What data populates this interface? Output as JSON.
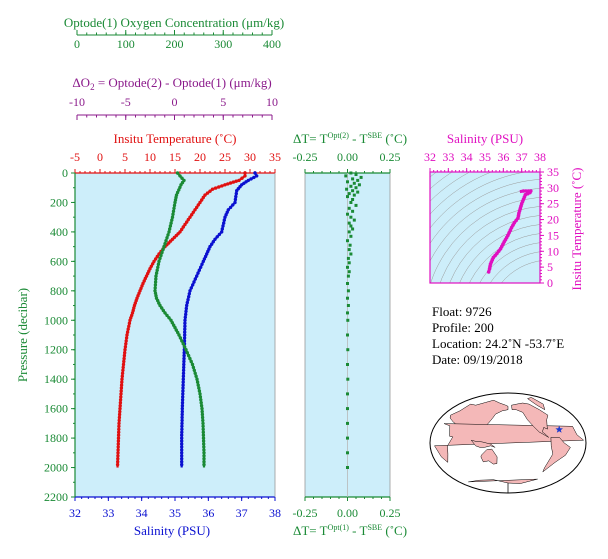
{
  "colors": {
    "green": "#1a8a35",
    "purple": "#8b1a8b",
    "red": "#e01010",
    "blue": "#0a10d0",
    "magenta": "#e010c0",
    "panel_bg": "#cdeefa",
    "map_land": "#f4b8b8",
    "map_ocean": "#ffffff"
  },
  "info": {
    "float": "Float:  9726",
    "profile": "Profile:  200",
    "location": "Location:  24.2˚N  -53.7˚E",
    "date": "Date:  09/19/2018"
  },
  "map": {
    "marker_lat": 24.2,
    "marker_lon": -53.7
  },
  "chart_data": [
    {
      "id": "oxygen-axis",
      "type": "line",
      "title": "Optode(1) Oxygen Concentration (μm/kg)",
      "xlim": [
        0,
        400
      ],
      "ticks": [
        "0",
        "100",
        "200",
        "300",
        "400"
      ]
    },
    {
      "id": "delta-o2-axis",
      "type": "line",
      "title_parts": [
        "ΔO",
        "2",
        " = Optode(2) - Optode(1)    (μm/kg)"
      ],
      "xlim": [
        -10,
        10
      ],
      "ticks": [
        "-10",
        "-5",
        "0",
        "5",
        "10"
      ]
    },
    {
      "id": "main-profile",
      "type": "line",
      "top_axis_label": "Insitu Temperature (˚C)",
      "top_ticks": [
        "-5",
        "0",
        "5",
        "10",
        "15",
        "20",
        "25",
        "30",
        "35"
      ],
      "top_xlim": [
        -5,
        35
      ],
      "bottom_axis_label": "Salinity (PSU)",
      "bottom_ticks": [
        "32",
        "33",
        "34",
        "35",
        "36",
        "37",
        "38"
      ],
      "bottom_xlim": [
        32,
        38
      ],
      "ylabel": "Pressure (decibar)",
      "y_ticks": [
        "0",
        "200",
        "400",
        "600",
        "800",
        "1000",
        "1200",
        "1400",
        "1600",
        "1800",
        "2000",
        "2200"
      ],
      "ylim": [
        0,
        2200
      ],
      "grid": false,
      "series": [
        {
          "key": "temperature",
          "axis": "top",
          "color": "red",
          "points": [
            [
              0,
              29.0
            ],
            [
              20,
              29.0
            ],
            [
              50,
              27.8
            ],
            [
              80,
              25.0
            ],
            [
              110,
              22.5
            ],
            [
              150,
              21.0
            ],
            [
              200,
              20.0
            ],
            [
              250,
              19.0
            ],
            [
              300,
              18.0
            ],
            [
              350,
              17.0
            ],
            [
              400,
              16.0
            ],
            [
              450,
              14.5
            ],
            [
              500,
              13.0
            ],
            [
              550,
              11.8
            ],
            [
              600,
              10.8
            ],
            [
              650,
              10.0
            ],
            [
              700,
              9.3
            ],
            [
              750,
              8.6
            ],
            [
              800,
              8.0
            ],
            [
              850,
              7.4
            ],
            [
              900,
              6.9
            ],
            [
              950,
              6.5
            ],
            [
              1000,
              6.0
            ],
            [
              1100,
              5.4
            ],
            [
              1200,
              5.0
            ],
            [
              1300,
              4.7
            ],
            [
              1400,
              4.4
            ],
            [
              1500,
              4.2
            ],
            [
              1600,
              4.0
            ],
            [
              1700,
              3.8
            ],
            [
              1800,
              3.7
            ],
            [
              1900,
              3.6
            ],
            [
              2000,
              3.5
            ]
          ]
        },
        {
          "key": "salinity",
          "axis": "bottom",
          "color": "blue",
          "points": [
            [
              0,
              37.4
            ],
            [
              20,
              37.45
            ],
            [
              50,
              37.2
            ],
            [
              80,
              37.0
            ],
            [
              120,
              36.85
            ],
            [
              200,
              36.8
            ],
            [
              250,
              36.6
            ],
            [
              300,
              36.5
            ],
            [
              400,
              36.4
            ],
            [
              450,
              36.2
            ],
            [
              500,
              36.05
            ],
            [
              550,
              35.95
            ],
            [
              600,
              35.85
            ],
            [
              700,
              35.65
            ],
            [
              800,
              35.45
            ],
            [
              900,
              35.35
            ],
            [
              1000,
              35.3
            ],
            [
              1200,
              35.28
            ],
            [
              1400,
              35.25
            ],
            [
              1600,
              35.22
            ],
            [
              1800,
              35.2
            ],
            [
              2000,
              35.2
            ]
          ]
        },
        {
          "key": "oxygen",
          "axis": "oxygen",
          "color": "green",
          "points": [
            [
              0,
              205
            ],
            [
              20,
              210
            ],
            [
              50,
              218
            ],
            [
              80,
              212
            ],
            [
              150,
              203
            ],
            [
              200,
              200
            ],
            [
              300,
              195
            ],
            [
              400,
              188
            ],
            [
              500,
              178
            ],
            [
              600,
              168
            ],
            [
              700,
              162
            ],
            [
              800,
              160
            ],
            [
              850,
              163
            ],
            [
              900,
              170
            ],
            [
              950,
              180
            ],
            [
              1000,
              192
            ],
            [
              1100,
              208
            ],
            [
              1200,
              222
            ],
            [
              1300,
              235
            ],
            [
              1400,
              244
            ],
            [
              1500,
              250
            ],
            [
              1600,
              254
            ],
            [
              1700,
              256
            ],
            [
              1800,
              257
            ],
            [
              1900,
              258
            ],
            [
              2000,
              258
            ]
          ]
        }
      ]
    },
    {
      "id": "delta-t",
      "type": "scatter",
      "top_axis_label_parts": [
        "ΔT= T",
        "Opt(2)",
        " - T",
        "SBE",
        " (˚C)"
      ],
      "bottom_axis_label_parts": [
        "ΔT= T",
        "Opt(1)",
        " - T",
        "SBE",
        " (˚C)"
      ],
      "ticks": [
        "-0.25",
        "0.00",
        "0.25"
      ],
      "xlim": [
        -0.25,
        0.25
      ],
      "ylim": [
        0,
        2200
      ],
      "series": [
        {
          "key": "delta-t",
          "color": "green",
          "points": [
            [
              0,
              0.02
            ],
            [
              10,
              0.05
            ],
            [
              20,
              -0.01
            ],
            [
              30,
              0.08
            ],
            [
              40,
              0.03
            ],
            [
              50,
              0.06
            ],
            [
              60,
              0.0
            ],
            [
              70,
              0.04
            ],
            [
              80,
              0.07
            ],
            [
              90,
              0.02
            ],
            [
              100,
              0.05
            ],
            [
              110,
              -0.005
            ],
            [
              120,
              0.03
            ],
            [
              130,
              0.06
            ],
            [
              140,
              0.01
            ],
            [
              150,
              0.04
            ],
            [
              160,
              0.0
            ],
            [
              180,
              0.03
            ],
            [
              200,
              0.02
            ],
            [
              220,
              0.05
            ],
            [
              240,
              0.01
            ],
            [
              260,
              0.03
            ],
            [
              280,
              0.0
            ],
            [
              300,
              0.02
            ],
            [
              320,
              0.04
            ],
            [
              340,
              0.01
            ],
            [
              360,
              0.02
            ],
            [
              380,
              0.03
            ],
            [
              400,
              0.01
            ],
            [
              430,
              0.02
            ],
            [
              460,
              0.0
            ],
            [
              490,
              0.015
            ],
            [
              520,
              0.01
            ],
            [
              550,
              0.02
            ],
            [
              580,
              0.005
            ],
            [
              610,
              0.01
            ],
            [
              640,
              0.0
            ],
            [
              670,
              0.01
            ],
            [
              700,
              0.005
            ],
            [
              750,
              0.0
            ],
            [
              800,
              0.005
            ],
            [
              850,
              0.0
            ],
            [
              900,
              0.005
            ],
            [
              950,
              0.0
            ],
            [
              1000,
              0.002
            ],
            [
              1100,
              0.0
            ],
            [
              1200,
              0.002
            ],
            [
              1300,
              0.0
            ],
            [
              1400,
              0.002
            ],
            [
              1500,
              0.0
            ],
            [
              1600,
              0.0
            ],
            [
              1700,
              0.0
            ],
            [
              1800,
              0.0
            ],
            [
              1900,
              0.0
            ],
            [
              2000,
              0.0
            ]
          ]
        }
      ]
    },
    {
      "id": "ts-diagram",
      "type": "line",
      "top_axis_label": "Salinity (PSU)",
      "top_ticks": [
        "32",
        "33",
        "34",
        "35",
        "36",
        "37",
        "38"
      ],
      "xlim": [
        32,
        38
      ],
      "ylabel": "Insitu Temperature (˚C)",
      "y_ticks": [
        "0",
        "5",
        "10",
        "15",
        "20",
        "25",
        "30",
        "35"
      ],
      "ylim": [
        0,
        35
      ],
      "series": [
        {
          "key": "ts",
          "color": "magenta",
          "points": [
            [
              35.2,
              3.5
            ],
            [
              35.25,
              4.5
            ],
            [
              35.3,
              6.0
            ],
            [
              35.45,
              8.0
            ],
            [
              35.65,
              9.3
            ],
            [
              35.85,
              10.8
            ],
            [
              36.05,
              13.0
            ],
            [
              36.25,
              15.0
            ],
            [
              36.45,
              17.5
            ],
            [
              36.6,
              19.0
            ],
            [
              36.8,
              20.5
            ],
            [
              36.85,
              22.0
            ],
            [
              37.0,
              25.0
            ],
            [
              37.2,
              27.8
            ],
            [
              37.45,
              28.5
            ],
            [
              37.5,
              29.0
            ],
            [
              37.1,
              29.0
            ],
            [
              36.9,
              28.8
            ]
          ]
        }
      ]
    }
  ]
}
